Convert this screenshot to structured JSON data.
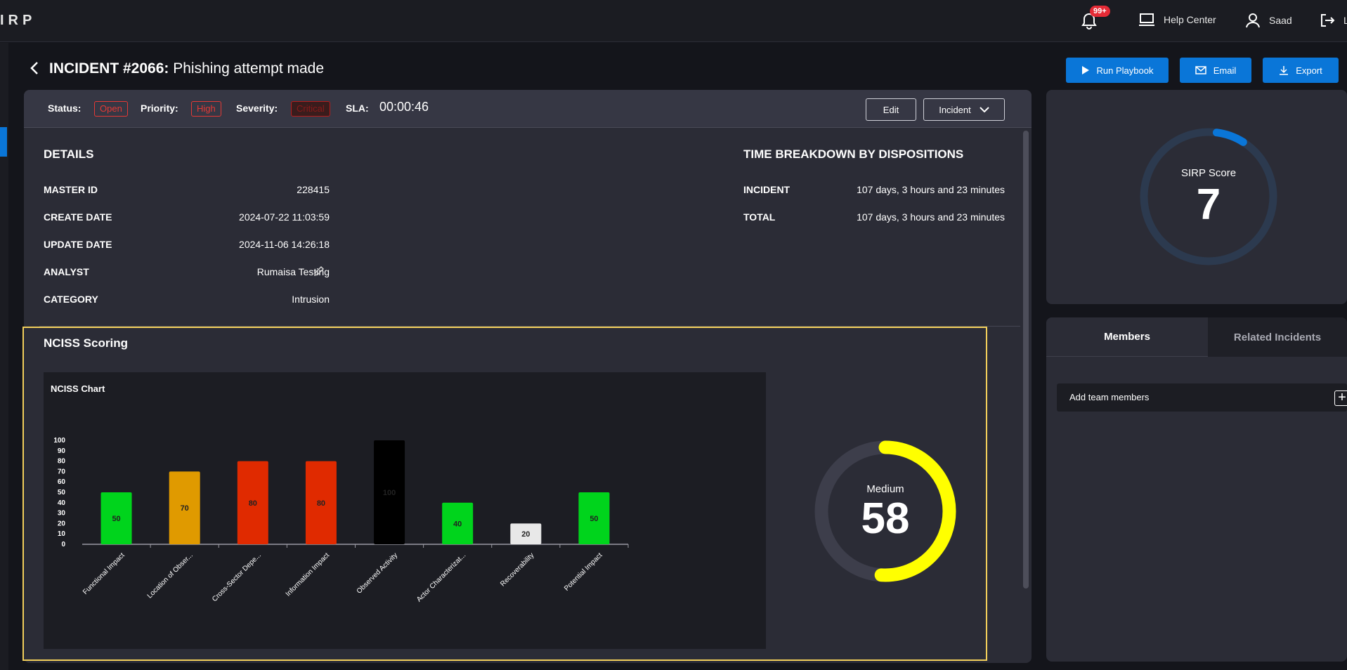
{
  "app": {
    "logo": "IRP"
  },
  "topbar": {
    "notifications_badge": "99+",
    "help_label": "Help Center",
    "user_label": "Saad",
    "logout_label": "L"
  },
  "incident": {
    "title_prefix": "INCIDENT #2066:",
    "title_text": "Phishing attempt made"
  },
  "actions": {
    "run_playbook": "Run Playbook",
    "email": "Email",
    "export": "Export"
  },
  "status_bar": {
    "status_label": "Status:",
    "status_value": "Open",
    "priority_label": "Priority:",
    "priority_value": "High",
    "severity_label": "Severity:",
    "severity_value": "Critical",
    "sla_label": "SLA:",
    "sla_value": "00:00:46",
    "edit_label": "Edit",
    "type_select": "Incident"
  },
  "details": {
    "heading": "DETAILS",
    "rows": [
      {
        "key": "MASTER ID",
        "value": "228415"
      },
      {
        "key": "CREATE DATE",
        "value": "2024-07-22 11:03:59"
      },
      {
        "key": "UPDATE DATE",
        "value": "2024-11-06 14:26:18"
      },
      {
        "key": "ANALYST",
        "value": "Rumaisa Testing"
      },
      {
        "key": "CATEGORY",
        "value": "Intrusion"
      }
    ]
  },
  "time_breakdown": {
    "heading": "TIME BREAKDOWN BY DISPOSITIONS",
    "rows": [
      {
        "key": "INCIDENT",
        "value": "107 days, 3 hours and 23 minutes"
      },
      {
        "key": "TOTAL",
        "value": "107 days, 3 hours and 23 minutes"
      }
    ]
  },
  "nciss": {
    "heading": "NCISS Scoring",
    "score_label": "Medium",
    "score_value": 58,
    "score_max": 100,
    "ring_color": "#ffff00",
    "ring_track": "#3d3e4b"
  },
  "sirp": {
    "label": "SIRP Score",
    "value": 7,
    "max": 100,
    "ring_color": "#0a76d8",
    "ring_track": "#2c3a4f"
  },
  "members": {
    "tab_members": "Members",
    "tab_related": "Related Incidents",
    "add_label": "Add team members"
  },
  "colors": {
    "accent": "#0a76d8",
    "highlight": "#f2cf5b",
    "danger": "#e53935"
  },
  "chart_data": {
    "type": "bar",
    "title": "NCISS Chart",
    "categories": [
      "Functional Impact",
      "Location of Obser...",
      "Cross-Sector Depe...",
      "Information Impact",
      "Observed Activity",
      "Actor Characterizat...",
      "Recoverability",
      "Potential Impact"
    ],
    "values": [
      50,
      70,
      80,
      80,
      100,
      40,
      20,
      50
    ],
    "colors": [
      "#00d41c",
      "#e09a00",
      "#e02a00",
      "#e02a00",
      "#000000",
      "#00d41c",
      "#e8e8e8",
      "#00d41c"
    ],
    "ylim": [
      0,
      100
    ],
    "yticks": [
      0,
      10,
      20,
      30,
      40,
      50,
      60,
      70,
      80,
      90,
      100
    ],
    "xlabel": "",
    "ylabel": "",
    "grid": false,
    "data_labels": true
  }
}
